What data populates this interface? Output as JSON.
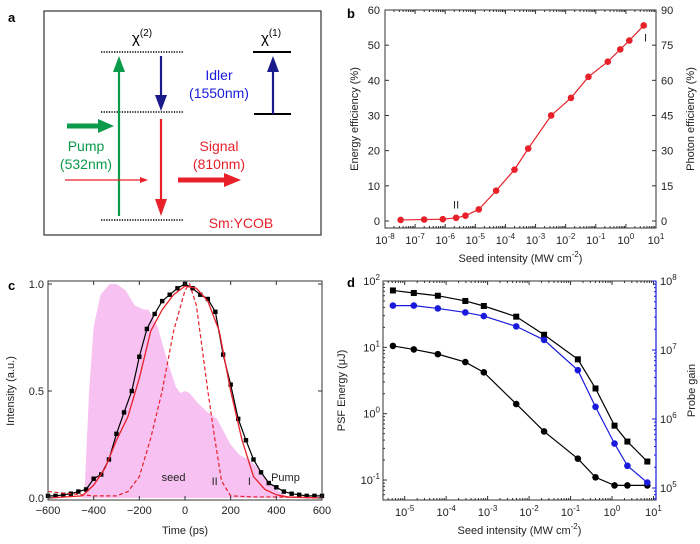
{
  "panel_labels": [
    "a",
    "b",
    "c",
    "d"
  ],
  "diagram": {
    "chi2_label": "χ",
    "chi2_sup": "(2)",
    "chi1_label": "χ",
    "chi1_sup": "(1)",
    "idler_label": "Idler",
    "idler_wavelength": "(1550nm)",
    "pump_label": "Pump",
    "pump_wavelength": "(532nm)",
    "signal_label": "Signal",
    "signal_wavelength": "(810nm)",
    "crystal_label": "Sm:YCOB",
    "colors": {
      "pump": "#0a9a4a",
      "idler": "#1a1a8c",
      "signal": "#e8202a",
      "idler_text": "#1a1adc"
    }
  },
  "chart_data": [
    {
      "panel": "b",
      "type": "line",
      "xlabel": "Seed intensity (MW cm",
      "xlabel_sup": "-2",
      "xlabel_end": ")",
      "ylabel": "Energy efficiency (%)",
      "y2label": "Photon efficiency (%)",
      "xscale": "log",
      "xlim": [
        1e-08,
        10
      ],
      "ylim": [
        -2,
        60
      ],
      "y2lim": [
        -3,
        90
      ],
      "xtick_base": "10",
      "xtick_exponents": [
        "-8",
        "-7",
        "-6",
        "-5",
        "-4",
        "-3",
        "-2",
        "-1",
        "0",
        "1"
      ],
      "yticks": [
        "0",
        "10",
        "20",
        "30",
        "40",
        "50",
        "60"
      ],
      "y2ticks": [
        "0",
        "15",
        "30",
        "45",
        "60",
        "75",
        "90"
      ],
      "color": "#e8202a",
      "x": [
        3.3e-08,
        2e-07,
        8.3e-07,
        2.3e-06,
        4.7e-06,
        1.3e-05,
        4.9e-05,
        0.0002,
        0.00057,
        0.0033,
        0.015,
        0.057,
        0.25,
        0.65,
        1.3,
        3.9
      ],
      "y": [
        0.3,
        0.4,
        0.5,
        0.9,
        1.5,
        3.3,
        8.6,
        14.6,
        20.6,
        30,
        35,
        41,
        45.3,
        48.8,
        51.3,
        55.6
      ],
      "annotations": [
        {
          "text": "II",
          "x": 2.3e-06,
          "y": 3.5
        },
        {
          "text": "I",
          "x": 4.5,
          "y": 51
        }
      ]
    },
    {
      "panel": "c",
      "type": "line",
      "xlabel": "Time (ps)",
      "ylabel": "Intensity (a.u.)",
      "xlim": [
        -600,
        600
      ],
      "ylim": [
        0,
        1.0
      ],
      "xticks": [
        "-600",
        "-400",
        "-200",
        "0",
        "200",
        "400",
        "600"
      ],
      "yticks": [
        "0.0",
        "0.5",
        "1.0"
      ],
      "series": [
        {
          "style": "area",
          "color": "#f7c2f2",
          "x": [
            -600,
            -450,
            -440,
            -420,
            -400,
            -370,
            -330,
            -300,
            -260,
            -220,
            -180,
            -160,
            -120,
            -80,
            -40,
            -20,
            0,
            20,
            60,
            100,
            140,
            200,
            240,
            280,
            320,
            360,
            400,
            440,
            460,
            600
          ],
          "y": [
            0,
            0,
            0.03,
            0.5,
            0.8,
            0.95,
            1.0,
            1.0,
            0.97,
            0.9,
            0.88,
            0.88,
            0.8,
            0.65,
            0.52,
            0.49,
            0.5,
            0.49,
            0.44,
            0.4,
            0.37,
            0.25,
            0.2,
            0.18,
            0.14,
            0.08,
            0.04,
            0.01,
            0,
            0
          ]
        },
        {
          "style": "line-square",
          "color": "#000000",
          "x": [
            -600,
            -567,
            -533,
            -500,
            -467,
            -433,
            -400,
            -367,
            -333,
            -300,
            -267,
            -233,
            -200,
            -167,
            -133,
            -100,
            -67,
            -33,
            0,
            33,
            67,
            100,
            133,
            167,
            200,
            233,
            267,
            300,
            333,
            367,
            400,
            433,
            467,
            500,
            533,
            567,
            600
          ],
          "y": [
            0.01,
            0.01,
            0.015,
            0.02,
            0.03,
            0.04,
            0.09,
            0.11,
            0.18,
            0.3,
            0.4,
            0.5,
            0.66,
            0.79,
            0.86,
            0.92,
            0.95,
            0.98,
            1.0,
            0.98,
            0.95,
            0.93,
            0.87,
            0.67,
            0.53,
            0.37,
            0.27,
            0.18,
            0.12,
            0.07,
            0.05,
            0.03,
            0.02,
            0.015,
            0.01,
            0.01,
            0.01
          ]
        },
        {
          "style": "solid",
          "color": "#e8202a",
          "x": [
            -600,
            -450,
            -400,
            -350,
            -300,
            -250,
            -200,
            -150,
            -100,
            -50,
            0,
            50,
            100,
            150,
            200,
            250,
            300,
            350,
            400,
            450,
            600
          ],
          "y": [
            0,
            0.01,
            0.06,
            0.14,
            0.27,
            0.38,
            0.56,
            0.78,
            0.88,
            0.95,
            0.99,
            0.98,
            0.92,
            0.78,
            0.5,
            0.27,
            0.1,
            0.04,
            0.015,
            0.005,
            0
          ]
        },
        {
          "style": "dashed",
          "color": "#e8202a",
          "x": [
            -600,
            -500,
            -400,
            -300,
            -250,
            -200,
            -150,
            -100,
            -50,
            0,
            20,
            50,
            100,
            130,
            160,
            200,
            300,
            400,
            600
          ],
          "y": [
            0.03,
            0.02,
            0.01,
            0.01,
            0.03,
            0.1,
            0.28,
            0.5,
            0.78,
            0.97,
            1.0,
            0.9,
            0.5,
            0.28,
            0.08,
            0.01,
            0.005,
            0.005,
            0
          ]
        }
      ],
      "annotations": [
        {
          "text": "seed",
          "x": -50,
          "y": 0.08
        },
        {
          "text": "II",
          "x": 130,
          "y": 0.06
        },
        {
          "text": "I",
          "x": 282,
          "y": 0.06
        },
        {
          "text": "Pump",
          "x": 440,
          "y": 0.08
        }
      ]
    },
    {
      "panel": "d",
      "type": "line",
      "xlabel": "Seed intensity (MW cm",
      "xlabel_sup": "-2",
      "xlabel_end": ")",
      "ylabel": "PSF Energy (μJ)",
      "y2label": "Probe gain",
      "xscale": "log",
      "yscale": "log",
      "y2scale": "log",
      "xlim": [
        3e-06,
        11.5
      ],
      "ylim": [
        0.05,
        100
      ],
      "y2lim": [
        67000,
        100000000.0
      ],
      "xtick_base": "10",
      "xtick_exponents": [
        "-5",
        "-4",
        "-3",
        "-2",
        "-1",
        "0",
        "1"
      ],
      "ytick_exponents": [
        "-1",
        "0",
        "1",
        "2"
      ],
      "y2tick_exponents": [
        "5",
        "6",
        "7",
        "8"
      ],
      "y2color": "#1a1adc",
      "x": [
        5.2e-06,
        1.66e-05,
        6.3e-05,
        0.00029,
        0.00081,
        0.0049,
        0.023,
        0.15,
        0.4,
        1.15,
        2.35,
        7.1
      ],
      "series": [
        {
          "marker": "square",
          "color": "#000000",
          "axis": "left",
          "y": [
            72,
            66,
            60,
            50,
            42,
            29,
            15.5,
            6.6,
            2.4,
            0.66,
            0.38,
            0.19
          ]
        },
        {
          "marker": "circle",
          "color": "#000000",
          "axis": "left",
          "y": [
            10.5,
            9.3,
            7.9,
            6.0,
            4.2,
            1.4,
            0.54,
            0.21,
            0.11,
            0.083,
            0.083,
            0.083
          ]
        },
        {
          "marker": "circle",
          "color": "#1a1adc",
          "axis": "right",
          "y": [
            44000000.0,
            44000000.0,
            40000000.0,
            35000000.0,
            31000000.0,
            22000000.0,
            14000000.0,
            5100000.0,
            1500000.0,
            440000.0,
            210000.0,
            120000.0
          ]
        }
      ]
    }
  ]
}
